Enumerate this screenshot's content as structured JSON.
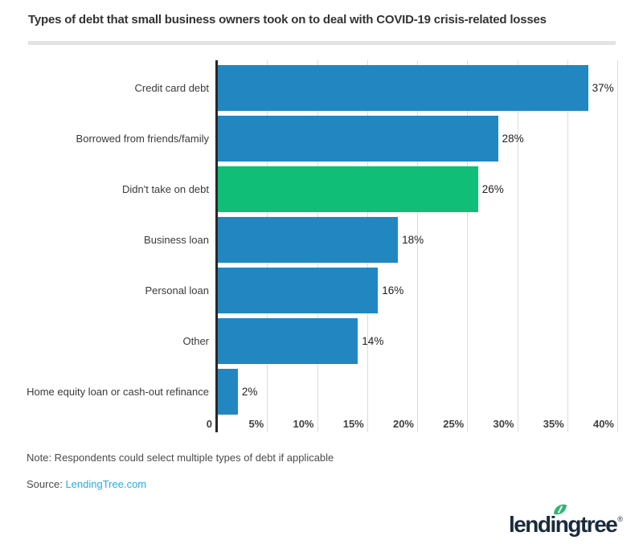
{
  "title": "Types of debt that small business owners took on to deal with COVID-19 crisis-related losses",
  "chart_data": {
    "type": "bar",
    "orientation": "horizontal",
    "title": "Types of debt that small business owners took on to deal with COVID-19 crisis-related losses",
    "categories": [
      "Credit card debt",
      "Borrowed from friends/family",
      "Didn't take on debt",
      "Business loan",
      "Personal loan",
      "Other",
      "Home equity loan or cash-out refinance"
    ],
    "values": [
      37,
      28,
      26,
      18,
      16,
      14,
      2
    ],
    "value_labels": [
      "37%",
      "28%",
      "26%",
      "18%",
      "16%",
      "14%",
      "2%"
    ],
    "bar_colors": [
      "#2287c1",
      "#2287c1",
      "#10be78",
      "#2287c1",
      "#2287c1",
      "#2287c1",
      "#2287c1"
    ],
    "x_ticks": [
      {
        "label": "0",
        "value": 0
      },
      {
        "label": "5%",
        "value": 5
      },
      {
        "label": "10%",
        "value": 10
      },
      {
        "label": "15%",
        "value": 15
      },
      {
        "label": "20%",
        "value": 20
      },
      {
        "label": "25%",
        "value": 25
      },
      {
        "label": "30%",
        "value": 30
      },
      {
        "label": "35%",
        "value": 35
      },
      {
        "label": "40%",
        "value": 40
      }
    ],
    "xlim": [
      0,
      40
    ],
    "grid": true,
    "legend": "none"
  },
  "footer": {
    "note": "Note: Respondents could select multiple types of debt if applicable",
    "source_label": "Source:",
    "source_link": "LendingTree.com"
  },
  "logo": {
    "text": "lendingtree",
    "registered": "®"
  },
  "colors": {
    "bar_blue": "#2287c1",
    "bar_green": "#10be78",
    "axis": "#272727",
    "gridline": "#dcdcdc",
    "divider": "#e3e3e3",
    "link": "#29abe2",
    "logo_navy": "#1a2b3c",
    "leaf_green": "#2db672",
    "title_text": "#333333"
  }
}
